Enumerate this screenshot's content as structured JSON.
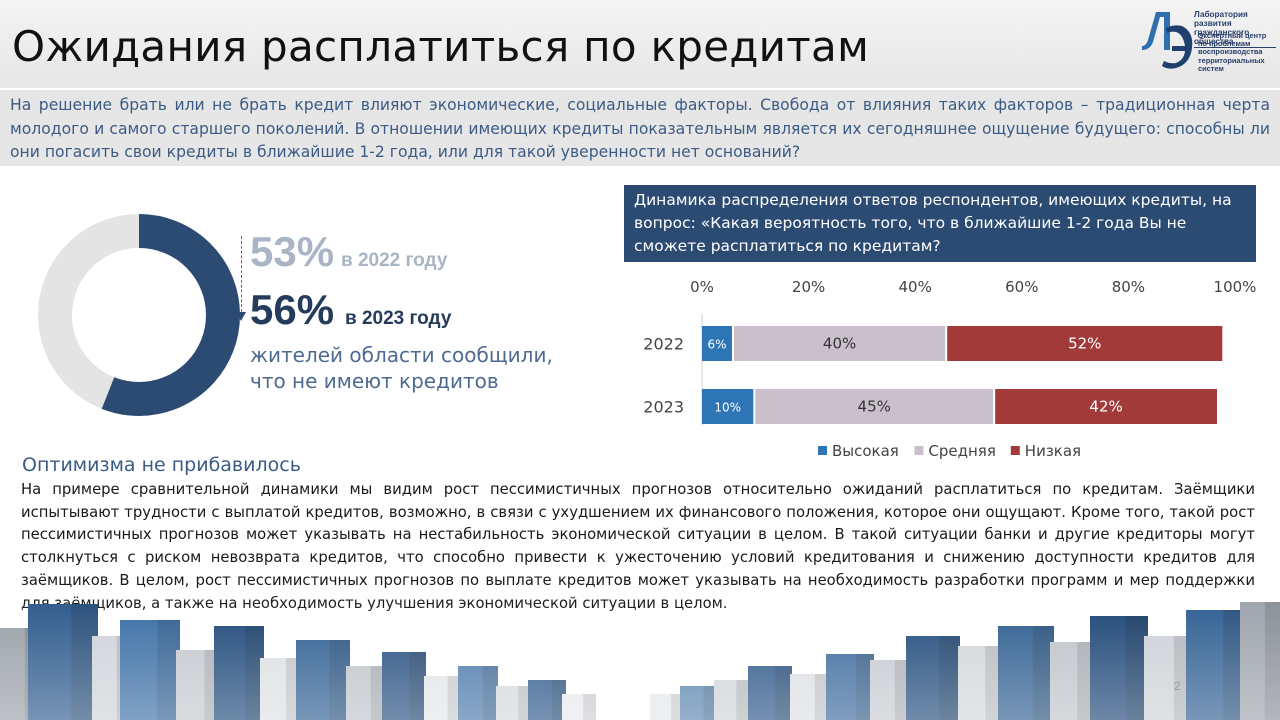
{
  "slide": {
    "title": "Ожидания расплатиться по кредитам",
    "intro": "На решение брать или не брать кредит влияют экономические, социальные факторы. Свобода от влияния таких факторов – традиционная черта молодого и самого старшего поколений. В отношении имеющих кредиты показательным является их сегодняшнее ощущение будущего: способны ли они погасить свои кредиты в ближайшие 1-2 года, или для такой уверенности нет оснований?",
    "page_number": "2"
  },
  "logo": {
    "top_text": "Лаборатория развития гражданского общества",
    "sub_text": "Экспертный центр по проблемам воспроизводства территориальных систем",
    "mark_text": "ЛЭ"
  },
  "donut": {
    "value_percent": 56,
    "fill_color": "#2c4b73",
    "rest_color": "#e4e4e4"
  },
  "stats": {
    "value_2022": "53%",
    "label_2022": "в 2022 году",
    "value_2023": "56%",
    "label_2023": "в 2023 году",
    "description_line1": "жителей области сообщили,",
    "description_line2": "что не имеют кредитов"
  },
  "chart_header": "Динамика распределения ответов респондентов, имеющих кредиты, на вопрос: «Какая вероятность того, что в ближайшие 1-2 года Вы не сможете расплатиться по кредитам?",
  "chart_data": {
    "type": "bar",
    "orientation": "horizontal",
    "stacked": true,
    "categories": [
      "2022",
      "2023"
    ],
    "series": [
      {
        "name": "Высокая",
        "values": [
          6,
          10
        ],
        "labels": [
          "6%",
          "10%"
        ],
        "color": "#2e75b6"
      },
      {
        "name": "Средняя",
        "values": [
          40,
          45
        ],
        "labels": [
          "40%",
          "45%"
        ],
        "color": "#c9c0cb"
      },
      {
        "name": "Низкая",
        "values": [
          52,
          42
        ],
        "labels": [
          "52%",
          "42%"
        ],
        "color": "#a33a3a"
      }
    ],
    "x_ticks": [
      "0%",
      "20%",
      "40%",
      "60%",
      "80%",
      "100%"
    ],
    "xlim": [
      0,
      100
    ],
    "grid": false,
    "legend_position": "bottom"
  },
  "section": {
    "subtitle": "Оптимизма не прибавилось",
    "body": "На примере сравнительной динамики мы видим рост пессимистичных прогнозов относительно ожиданий расплатиться по кредитам. Заёмщики испытывают трудности с выплатой кредитов, возможно, в связи с ухудшением их финансового положения, которое они ощущают. Кроме того, такой рост пессимистичных прогнозов может указывать на нестабильность экономической ситуации в целом. В такой ситуации банки и другие кредиторы могут столкнуться с риском невозврата кредитов, что способно привести к ужесточению условий кредитования и снижению доступности кредитов для заёмщиков. В целом, рост пессимистичных прогнозов по выплате кредитов может указывать на необходимость разработки программ и мер поддержки для заёмщиков, а также на необходимость улучшения экономической ситуации в целом."
  }
}
